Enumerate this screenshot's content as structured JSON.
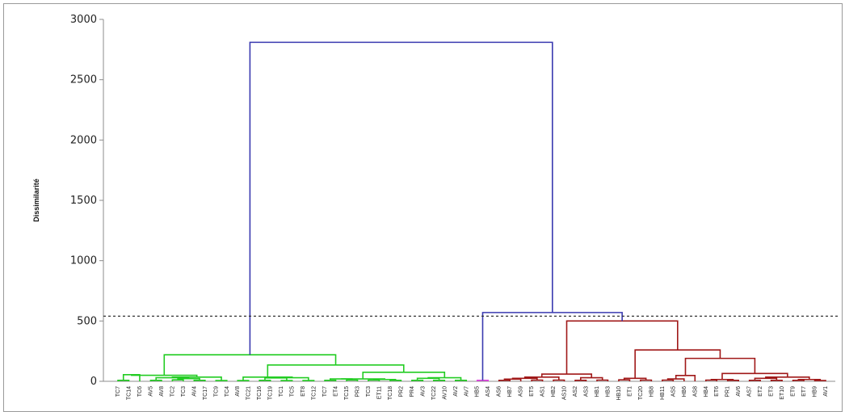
{
  "chart_data": {
    "type": "dendrogram",
    "title": "",
    "xlabel": "",
    "ylabel": "Dissimilarité",
    "ylim": [
      0,
      3000
    ],
    "yticks": [
      "0",
      "500",
      "1000",
      "1500",
      "2000",
      "2500",
      "3000"
    ],
    "truncation_line": 540,
    "colors": {
      "root": "#3a3ab0",
      "green": "#22cc22",
      "pink": "#e040e0",
      "red": "#a01818",
      "cut": "#333333"
    },
    "leaves": [
      "TC7",
      "TC14",
      "TC6",
      "AV5",
      "AV8",
      "TC2",
      "TC3",
      "AV4",
      "TC17",
      "TC9",
      "TC4",
      "AV8",
      "TC21",
      "TC16",
      "TC19",
      "TC1",
      "TC5",
      "ET8",
      "TC12",
      "TC7",
      "ET4",
      "TC15",
      "PR3",
      "TC3",
      "ET11",
      "TC18",
      "PR2",
      "PR4",
      "AV3",
      "TC22",
      "AV10",
      "AV2",
      "AV7",
      "HB5",
      "AS4",
      "AS6",
      "HB7",
      "AS9",
      "ET5",
      "AS1",
      "HB2",
      "AS10",
      "AS2",
      "AS3",
      "HB1",
      "HB3",
      "HB10",
      "ET1",
      "TC20",
      "HB8",
      "HB11",
      "AS5",
      "HB6",
      "AS8",
      "HB4",
      "ET6",
      "PR1",
      "AV6",
      "AS7",
      "ET2",
      "ET3",
      "ET10",
      "ET9",
      "ET7",
      "HB9",
      "AV1"
    ],
    "merges": [
      {
        "left": 0,
        "right": 1,
        "height": 8,
        "color": "green"
      },
      {
        "left": "c0",
        "right": 2,
        "height": 55,
        "color": "green"
      },
      {
        "left": 3,
        "right": 4,
        "height": 8,
        "color": "green"
      },
      {
        "left": 5,
        "right": 6,
        "height": 12,
        "color": "green"
      },
      {
        "left": 7,
        "right": 8,
        "height": 8,
        "color": "green"
      },
      {
        "left": "c3",
        "right": "c4",
        "height": 22,
        "color": "green"
      },
      {
        "left": "c2",
        "right": "c5",
        "height": 30,
        "color": "green"
      },
      {
        "left": 9,
        "right": 10,
        "height": 6,
        "color": "green"
      },
      {
        "left": "c6",
        "right": "c7",
        "height": 35,
        "color": "green"
      },
      {
        "left": "c1",
        "right": "c8",
        "height": 50,
        "color": "green"
      },
      {
        "left": 11,
        "right": 12,
        "height": 6,
        "color": "green"
      },
      {
        "left": 13,
        "right": 14,
        "height": 8,
        "color": "green"
      },
      {
        "left": 15,
        "right": 16,
        "height": 6,
        "color": "green"
      },
      {
        "left": "c11",
        "right": "c12",
        "height": 28,
        "color": "green"
      },
      {
        "left": 17,
        "right": 18,
        "height": 6,
        "color": "green"
      },
      {
        "left": "c13",
        "right": "c14",
        "height": 30,
        "color": "green"
      },
      {
        "left": "c10",
        "right": "c15",
        "height": 35,
        "color": "green"
      },
      {
        "left": 19,
        "right": 20,
        "height": 8,
        "color": "green"
      },
      {
        "left": 21,
        "right": 22,
        "height": 10,
        "color": "green"
      },
      {
        "left": "c17",
        "right": "c18",
        "height": 20,
        "color": "green"
      },
      {
        "left": 23,
        "right": 24,
        "height": 10,
        "color": "green"
      },
      {
        "left": 25,
        "right": 26,
        "height": 8,
        "color": "green"
      },
      {
        "left": "c20",
        "right": "c21",
        "height": 15,
        "color": "green"
      },
      {
        "left": "c19",
        "right": "c22",
        "height": 20,
        "color": "green"
      },
      {
        "left": 27,
        "right": 28,
        "height": 8,
        "color": "green"
      },
      {
        "left": 29,
        "right": 30,
        "height": 8,
        "color": "green"
      },
      {
        "left": "c24",
        "right": "c25",
        "height": 25,
        "color": "green"
      },
      {
        "left": 31,
        "right": 32,
        "height": 8,
        "color": "green"
      },
      {
        "left": "c26",
        "right": "c27",
        "height": 30,
        "color": "green"
      },
      {
        "left": "c23",
        "right": "c28",
        "height": 75,
        "color": "green"
      },
      {
        "left": "c16",
        "right": "c29",
        "height": 135,
        "color": "green"
      },
      {
        "left": "c9",
        "right": "c30",
        "height": 220,
        "color": "green"
      },
      {
        "left": 33,
        "right": 34,
        "height": 8,
        "color": "pink"
      },
      {
        "left": 35,
        "right": 36,
        "height": 8,
        "color": "red"
      },
      {
        "left": "c33",
        "right": 37,
        "height": 18,
        "color": "red"
      },
      {
        "left": 38,
        "right": 39,
        "height": 10,
        "color": "red"
      },
      {
        "left": "c34",
        "right": "c35",
        "height": 25,
        "color": "red"
      },
      {
        "left": 40,
        "right": 41,
        "height": 10,
        "color": "red"
      },
      {
        "left": "c36",
        "right": "c37",
        "height": 35,
        "color": "red"
      },
      {
        "left": 42,
        "right": 43,
        "height": 8,
        "color": "red"
      },
      {
        "left": 44,
        "right": 45,
        "height": 10,
        "color": "red"
      },
      {
        "left": "c39",
        "right": "c40",
        "height": 30,
        "color": "red"
      },
      {
        "left": "c38",
        "right": "c41",
        "height": 60,
        "color": "red"
      },
      {
        "left": 46,
        "right": 47,
        "height": 12,
        "color": "red"
      },
      {
        "left": 48,
        "right": 49,
        "height": 10,
        "color": "red"
      },
      {
        "left": "c43",
        "right": "c44",
        "height": 25,
        "color": "red"
      },
      {
        "left": 50,
        "right": 51,
        "height": 10,
        "color": "red"
      },
      {
        "left": "c46",
        "right": 52,
        "height": 20,
        "color": "red"
      },
      {
        "left": "c47",
        "right": 53,
        "height": 48,
        "color": "red"
      },
      {
        "left": 54,
        "right": 55,
        "height": 10,
        "color": "red"
      },
      {
        "left": 56,
        "right": 57,
        "height": 8,
        "color": "red"
      },
      {
        "left": "c49",
        "right": "c50",
        "height": 15,
        "color": "red"
      },
      {
        "left": 58,
        "right": 59,
        "height": 8,
        "color": "red"
      },
      {
        "left": 60,
        "right": 61,
        "height": 8,
        "color": "red"
      },
      {
        "left": "c52",
        "right": "c53",
        "height": 25,
        "color": "red"
      },
      {
        "left": 62,
        "right": 63,
        "height": 8,
        "color": "red"
      },
      {
        "left": 64,
        "right": 65,
        "height": 6,
        "color": "red"
      },
      {
        "left": "c55",
        "right": "c56",
        "height": 15,
        "color": "red"
      },
      {
        "left": "c54",
        "right": "c57",
        "height": 35,
        "color": "red"
      },
      {
        "left": "c51",
        "right": "c58",
        "height": 65,
        "color": "red"
      },
      {
        "left": "c48",
        "right": "c59",
        "height": 190,
        "color": "red"
      },
      {
        "left": "c45",
        "right": "c60",
        "height": 260,
        "color": "red"
      },
      {
        "left": "c42",
        "right": "c61",
        "height": 500,
        "color": "red"
      },
      {
        "left": "c32",
        "right": "c62",
        "height": 570,
        "color": "root"
      },
      {
        "left": "c31",
        "right": "c63",
        "height": 2810,
        "color": "root"
      }
    ]
  }
}
